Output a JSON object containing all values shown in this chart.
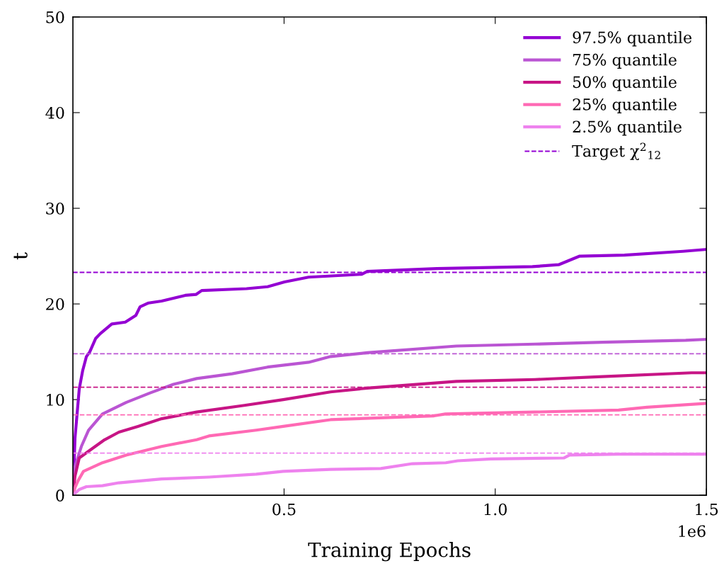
{
  "chart_data": {
    "type": "line",
    "xlabel": "Training Epochs",
    "ylabel": "t",
    "xlim": [
      0,
      1.5
    ],
    "ylim": [
      0,
      50
    ],
    "xticks": [
      0.5,
      {
        "value": 1.0,
        "label": "1.0"
      },
      1.5
    ],
    "yticks": [
      0,
      10,
      20,
      30,
      40,
      50
    ],
    "annotations": [
      "1e6"
    ],
    "legend": "top right",
    "grid": false,
    "line_style": "solid",
    "marker": "none",
    "series": [
      {
        "name": "97.5% quantile",
        "color": "#9400d3",
        "x": [
          0,
          0.005,
          0.015,
          0.023,
          0.032,
          0.04,
          0.054,
          0.065,
          0.092,
          0.124,
          0.149,
          0.159,
          0.179,
          0.21,
          0.266,
          0.292,
          0.305,
          0.411,
          0.461,
          0.501,
          0.558,
          0.684,
          0.697,
          0.862,
          1.088,
          1.15,
          1.2,
          1.306,
          1.445,
          1.5
        ],
        "values": [
          0,
          6.0,
          11.1,
          13.0,
          14.5,
          15.0,
          16.4,
          16.9,
          17.9,
          18.1,
          18.8,
          19.7,
          20.1,
          20.3,
          20.9,
          21.0,
          21.4,
          21.6,
          21.8,
          22.3,
          22.8,
          23.1,
          23.4,
          23.7,
          23.9,
          24.1,
          25.0,
          25.1,
          25.5,
          25.7
        ]
      },
      {
        "name": "75% quantile",
        "color": "#ba55d3",
        "x": [
          0,
          0.005,
          0.02,
          0.037,
          0.07,
          0.126,
          0.183,
          0.238,
          0.293,
          0.377,
          0.461,
          0.558,
          0.61,
          0.697,
          0.908,
          1.094,
          1.254,
          1.451,
          1.5
        ],
        "values": [
          0,
          3.0,
          5.1,
          6.8,
          8.5,
          9.7,
          10.7,
          11.6,
          12.2,
          12.7,
          13.4,
          13.9,
          14.5,
          14.9,
          15.6,
          15.8,
          16.0,
          16.2,
          16.3
        ]
      },
      {
        "name": "50% quantile",
        "color": "#c71585",
        "x": [
          0,
          0.005,
          0.015,
          0.037,
          0.075,
          0.109,
          0.154,
          0.21,
          0.293,
          0.406,
          0.498,
          0.61,
          0.697,
          0.908,
          1.094,
          1.254,
          1.465,
          1.5
        ],
        "values": [
          0,
          2.0,
          3.9,
          4.6,
          5.8,
          6.6,
          7.2,
          8.0,
          8.7,
          9.4,
          10.0,
          10.8,
          11.2,
          11.9,
          12.1,
          12.4,
          12.8,
          12.8
        ]
      },
      {
        "name": "25% quantile",
        "color": "#ff69b4",
        "x": [
          0,
          0.005,
          0.012,
          0.025,
          0.07,
          0.126,
          0.21,
          0.293,
          0.322,
          0.434,
          0.498,
          0.61,
          0.855,
          0.882,
          1.094,
          1.292,
          1.359,
          1.5
        ],
        "values": [
          0,
          0.8,
          1.5,
          2.5,
          3.4,
          4.2,
          5.1,
          5.8,
          6.2,
          6.8,
          7.2,
          7.9,
          8.3,
          8.5,
          8.7,
          8.9,
          9.2,
          9.6
        ]
      },
      {
        "name": "2.5% quantile",
        "color": "#ee82ee",
        "x": [
          0,
          0.015,
          0.032,
          0.07,
          0.109,
          0.21,
          0.322,
          0.434,
          0.498,
          0.61,
          0.729,
          0.804,
          0.883,
          0.911,
          0.99,
          1.163,
          1.176,
          1.292,
          1.5
        ],
        "values": [
          0,
          0.6,
          0.9,
          1.0,
          1.3,
          1.7,
          1.9,
          2.2,
          2.5,
          2.7,
          2.8,
          3.3,
          3.4,
          3.6,
          3.8,
          3.9,
          4.2,
          4.3,
          4.3
        ]
      }
    ],
    "ref_lines": [
      {
        "axis": "y",
        "value": 23.3,
        "color": "#9400d3",
        "line_style": "dashed",
        "label": "Target χ$^{2}$$_{12}$"
      },
      {
        "axis": "y",
        "value": 14.8,
        "color": "#ba55d3",
        "line_style": "dashed"
      },
      {
        "axis": "y",
        "value": 11.3,
        "color": "#c71585",
        "line_style": "dashed"
      },
      {
        "axis": "y",
        "value": 8.4,
        "color": "#ff69b4",
        "line_style": "dashed"
      },
      {
        "axis": "y",
        "value": 4.4,
        "color": "#ee82ee",
        "line_style": "dashed"
      }
    ]
  }
}
